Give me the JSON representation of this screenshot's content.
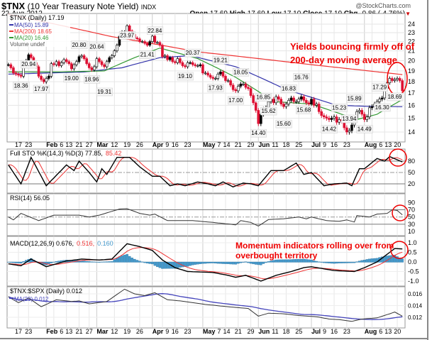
{
  "header": {
    "symbol": "$TNX",
    "name": "(10 Year Treasury Note Yield)",
    "exchange": "INDX",
    "date": "22-Aug-2012",
    "source": "@StockCharts.com",
    "ohlc": {
      "open_label": "Open",
      "open": "17.69",
      "high_label": "High",
      "high": "17.69",
      "low_label": "Low",
      "low": "17.10",
      "close_label": "Close",
      "close": "17.19",
      "chg_label": "Chg",
      "chg": "-0.86 (-4.76%)"
    }
  },
  "colors": {
    "up": "#000000",
    "down": "#dd1133",
    "ma50": "#3333aa",
    "ma200": "#ee3333",
    "ma20": "#339933",
    "annotation": "#ee0000",
    "hist": "#4499cc"
  },
  "legend": {
    "price": "$TNX (Daily) 17.19",
    "ma50": "MA(50) 15.89",
    "ma200": "MA(200) 18.65",
    "ma20": "MA(20) 16.46",
    "volume": "Volume undef",
    "sto": "Full STO %K(14,3) %D(3) 77.85,",
    "sto_d": "85.42",
    "rsi": "RSI(14) 56.05",
    "macd": "MACD(12,26,9) 0.676,",
    "macd_sig": "0.516,",
    "macd_hist": "0.160",
    "ratio": "$TNX:$SPX (Daily) 0.012",
    "ratio_ma": "MA(20) 0.012"
  },
  "annotations": {
    "yields": [
      "Yields bouncing firmly off of",
      "200-day moving average"
    ],
    "momentum": [
      "Momentum indicators rolling over from",
      "overbought territory"
    ]
  },
  "chart_data": {
    "type": "candlestick",
    "x_unit": "trading day index (0 = 10-Jan-2012, 156 = 22-Aug-2012)",
    "date_ticks": [
      {
        "l": "17",
        "i": 4
      },
      {
        "l": "23",
        "i": 8
      },
      {
        "l": "Feb",
        "i": 15,
        "b": 1
      },
      {
        "l": "6",
        "i": 18
      },
      {
        "l": "13",
        "i": 23
      },
      {
        "l": "21",
        "i": 28
      },
      {
        "l": "27",
        "i": 32
      },
      {
        "l": "Mar",
        "i": 35,
        "b": 1
      },
      {
        "l": "12",
        "i": 42
      },
      {
        "l": "19",
        "i": 47
      },
      {
        "l": "26",
        "i": 52
      },
      {
        "l": "Apr",
        "i": 57,
        "b": 1
      },
      {
        "l": "9",
        "i": 61
      },
      {
        "l": "16",
        "i": 66
      },
      {
        "l": "23",
        "i": 71
      },
      {
        "l": "May",
        "i": 77,
        "b": 1
      },
      {
        "l": "7",
        "i": 81
      },
      {
        "l": "14",
        "i": 86
      },
      {
        "l": "21",
        "i": 91
      },
      {
        "l": "29",
        "i": 96
      },
      {
        "l": "Jun",
        "i": 99,
        "b": 1
      },
      {
        "l": "11",
        "i": 105
      },
      {
        "l": "18",
        "i": 110
      },
      {
        "l": "25",
        "i": 115
      },
      {
        "l": "Jul",
        "i": 120,
        "b": 1
      },
      {
        "l": "9",
        "i": 124
      },
      {
        "l": "16",
        "i": 129
      },
      {
        "l": "23",
        "i": 134
      },
      {
        "l": "Aug",
        "i": 141,
        "b": 1
      },
      {
        "l": "6",
        "i": 144
      },
      {
        "l": "13",
        "i": 149
      },
      {
        "l": "20",
        "i": 154
      }
    ],
    "price_axis": [
      "24",
      "23",
      "22",
      "21",
      "20",
      "19",
      "18",
      "17",
      "16",
      "15",
      "14"
    ],
    "closes": [
      19.6,
      19.3,
      18.8,
      18.7,
      18.6,
      18.5,
      19.6,
      20.0,
      20.6,
      20.3,
      19.8,
      19.4,
      18.5,
      18.2,
      18.0,
      18.3,
      18.5,
      19.7,
      19.6,
      19.9,
      19.5,
      19.8,
      20.1,
      19.9,
      19.7,
      19.2,
      19.6,
      19.9,
      20.4,
      20.5,
      20.2,
      19.7,
      19.3,
      19.1,
      19.4,
      20.2,
      19.9,
      19.6,
      19.4,
      19.9,
      20.3,
      20.5,
      21.0,
      21.6,
      22.6,
      23.1,
      23.1,
      23.8,
      23.2,
      22.8,
      22.4,
      22.3,
      22.0,
      22.0,
      21.8,
      21.6,
      22.0,
      22.6,
      21.9,
      21.9,
      21.6,
      20.4,
      20.5,
      20.1,
      20.3,
      19.9,
      19.8,
      20.2,
      19.8,
      19.5,
      19.4,
      19.8,
      19.8,
      19.6,
      19.5,
      19.5,
      19.6,
      18.8,
      18.8,
      18.6,
      18.4,
      18.3,
      18.3,
      18.7,
      18.9,
      18.5,
      18.1,
      18.1,
      17.7,
      17.3,
      17.2,
      17.6,
      17.8,
      17.8,
      17.5,
      17.4,
      16.8,
      16.2,
      15.6,
      14.6,
      15.3,
      15.7,
      15.8,
      16.3,
      16.5,
      16.2,
      16.7,
      16.5,
      16.1,
      15.9,
      16.1,
      16.4,
      16.6,
      16.3,
      16.3,
      16.5,
      16.7,
      16.4,
      16.2,
      16.1,
      16.5,
      16.0,
      16.1,
      15.5,
      15.2,
      15.1,
      15.0,
      14.9,
      15.0,
      15.1,
      14.7,
      14.9,
      14.8,
      14.3,
      14.0,
      14.1,
      14.5,
      15.0,
      15.5,
      15.6,
      15.3,
      14.9,
      15.1,
      15.8,
      15.9,
      16.1,
      16.3,
      16.5,
      16.6,
      17.4,
      17.9,
      18.3,
      18.1,
      18.2,
      18.3,
      18.1,
      17.2
    ],
    "price_labels": [
      {
        "v": "18.36",
        "i": 5,
        "d": "below"
      },
      {
        "v": "20.94",
        "i": 8,
        "d": "above"
      },
      {
        "v": "17.97",
        "i": 13,
        "d": "below"
      },
      {
        "v": "19.00",
        "i": 25,
        "d": "below"
      },
      {
        "v": "20.80",
        "i": 28,
        "d": "above"
      },
      {
        "v": "18.96",
        "i": 33,
        "d": "below"
      },
      {
        "v": "20.64",
        "i": 35,
        "d": "above"
      },
      {
        "v": "19.31",
        "i": 38,
        "d": "below"
      },
      {
        "v": "23.97",
        "i": 47,
        "d": "above"
      },
      {
        "v": "21.41",
        "i": 55,
        "d": "below"
      },
      {
        "v": "22.84",
        "i": 58,
        "d": "above"
      },
      {
        "v": "19.10",
        "i": 70,
        "d": "below"
      },
      {
        "v": "20.37",
        "i": 73,
        "d": "above"
      },
      {
        "v": "17.93",
        "i": 82,
        "d": "below"
      },
      {
        "v": "19.21",
        "i": 84,
        "d": "above"
      },
      {
        "v": "17.00",
        "i": 90,
        "d": "below"
      },
      {
        "v": "18.05",
        "i": 92,
        "d": "above"
      },
      {
        "v": "14.40",
        "i": 99,
        "d": "below"
      },
      {
        "v": "16.85",
        "i": 101,
        "d": "above"
      },
      {
        "v": "15.62",
        "i": 103,
        "d": "below"
      },
      {
        "v": "15.60",
        "i": 109,
        "d": "below"
      },
      {
        "v": "16.83",
        "i": 111,
        "d": "above"
      },
      {
        "v": "16.76",
        "i": 116,
        "d": "above"
      },
      {
        "v": "15.68",
        "i": 117,
        "d": "below"
      },
      {
        "v": "14.42",
        "i": 127,
        "d": "below"
      },
      {
        "v": "15.23",
        "i": 131,
        "d": "above"
      },
      {
        "v": "13.94",
        "i": 135,
        "d": "below"
      },
      {
        "v": "15.89",
        "i": 137,
        "d": "above"
      },
      {
        "v": "14.49",
        "i": 141,
        "d": "below"
      },
      {
        "v": "17.29",
        "i": 147,
        "d": "above"
      },
      {
        "v": "16.30",
        "i": 148,
        "d": "below"
      },
      {
        "v": "18.69",
        "i": 153,
        "d": "above"
      }
    ],
    "ma200": [
      [
        0,
        25.2
      ],
      [
        40,
        22.6
      ],
      [
        75,
        20.9
      ],
      [
        120,
        19.6
      ],
      [
        156,
        18.65
      ]
    ],
    "ma50": [
      [
        0,
        18.7
      ],
      [
        30,
        18.9
      ],
      [
        45,
        19.3
      ],
      [
        60,
        20.3
      ],
      [
        72,
        20.5
      ],
      [
        90,
        19.4
      ],
      [
        110,
        17.3
      ],
      [
        130,
        16.0
      ],
      [
        145,
        15.9
      ],
      [
        156,
        15.89
      ]
    ],
    "ma20": [
      [
        0,
        18.9
      ],
      [
        20,
        18.9
      ],
      [
        38,
        19.0
      ],
      [
        50,
        20.3
      ],
      [
        60,
        21.3
      ],
      [
        75,
        20.2
      ],
      [
        90,
        18.4
      ],
      [
        105,
        16.3
      ],
      [
        120,
        16.1
      ],
      [
        138,
        14.9
      ],
      [
        146,
        15.3
      ],
      [
        156,
        16.46
      ]
    ],
    "sto_axis": [
      "80",
      "50",
      "20"
    ],
    "sto_k": [
      [
        0,
        70
      ],
      [
        5,
        20
      ],
      [
        9,
        90
      ],
      [
        15,
        15
      ],
      [
        23,
        70
      ],
      [
        26,
        55
      ],
      [
        28,
        80
      ],
      [
        32,
        50
      ],
      [
        35,
        25
      ],
      [
        37,
        60
      ],
      [
        39,
        45
      ],
      [
        43,
        90
      ],
      [
        48,
        90
      ],
      [
        52,
        65
      ],
      [
        57,
        40
      ],
      [
        60,
        40
      ],
      [
        64,
        15
      ],
      [
        67,
        20
      ],
      [
        70,
        15
      ],
      [
        75,
        25
      ],
      [
        79,
        20
      ],
      [
        82,
        15
      ],
      [
        85,
        25
      ],
      [
        89,
        12
      ],
      [
        93,
        22
      ],
      [
        96,
        20
      ],
      [
        99,
        15
      ],
      [
        104,
        55
      ],
      [
        109,
        55
      ],
      [
        114,
        75
      ],
      [
        117,
        45
      ],
      [
        120,
        50
      ],
      [
        125,
        15
      ],
      [
        129,
        20
      ],
      [
        134,
        22
      ],
      [
        136,
        15
      ],
      [
        139,
        60
      ],
      [
        141,
        60
      ],
      [
        146,
        87
      ],
      [
        149,
        80
      ],
      [
        151,
        92
      ],
      [
        156,
        78
      ]
    ],
    "rsi_axis": [
      "90",
      "70",
      "50",
      "30",
      "10"
    ],
    "rsi": [
      [
        0,
        50
      ],
      [
        2,
        42
      ],
      [
        5,
        60
      ],
      [
        12,
        40
      ],
      [
        18,
        55
      ],
      [
        28,
        55
      ],
      [
        32,
        50
      ],
      [
        36,
        55
      ],
      [
        44,
        72
      ],
      [
        47,
        73
      ],
      [
        52,
        60
      ],
      [
        56,
        55
      ],
      [
        58,
        58
      ],
      [
        63,
        40
      ],
      [
        73,
        40
      ],
      [
        81,
        35
      ],
      [
        88,
        30
      ],
      [
        90,
        28
      ],
      [
        92,
        40
      ],
      [
        96,
        35
      ],
      [
        99,
        25
      ],
      [
        103,
        43
      ],
      [
        109,
        45
      ],
      [
        115,
        50
      ],
      [
        118,
        45
      ],
      [
        120,
        50
      ],
      [
        126,
        40
      ],
      [
        131,
        38
      ],
      [
        134,
        42
      ],
      [
        137,
        36
      ],
      [
        138,
        54
      ],
      [
        143,
        50
      ],
      [
        146,
        58
      ],
      [
        150,
        60
      ],
      [
        152,
        70
      ],
      [
        154,
        68
      ],
      [
        156,
        56
      ]
    ],
    "macd_axis": [
      "1.0",
      "0.5",
      "0.0",
      "-0.5",
      "-1.0"
    ],
    "macd": [
      [
        0,
        -0.1
      ],
      [
        5,
        -0.2
      ],
      [
        9,
        0.15
      ],
      [
        15,
        -0.25
      ],
      [
        23,
        0.05
      ],
      [
        29,
        0.15
      ],
      [
        36,
        0.1
      ],
      [
        41,
        0.15
      ],
      [
        47,
        0.95
      ],
      [
        52,
        0.8
      ],
      [
        57,
        0.6
      ],
      [
        61,
        0.1
      ],
      [
        66,
        -0.3
      ],
      [
        71,
        -0.5
      ],
      [
        81,
        -0.55
      ],
      [
        87,
        -0.7
      ],
      [
        90,
        -0.8
      ],
      [
        94,
        -0.7
      ],
      [
        100,
        -1.0
      ],
      [
        106,
        -0.7
      ],
      [
        112,
        -0.5
      ],
      [
        117,
        -0.3
      ],
      [
        120,
        -0.25
      ],
      [
        129,
        -0.45
      ],
      [
        137,
        -0.5
      ],
      [
        141,
        -0.3
      ],
      [
        146,
        0.0
      ],
      [
        150,
        0.4
      ],
      [
        153,
        0.7
      ],
      [
        156,
        0.676
      ]
    ],
    "ratio_axis": [
      "0.016",
      "0.014",
      "0.012"
    ],
    "ratio": [
      [
        0,
        0.0155
      ],
      [
        4,
        0.0145
      ],
      [
        8,
        0.0153
      ],
      [
        13,
        0.0138
      ],
      [
        19,
        0.015
      ],
      [
        25,
        0.0147
      ],
      [
        28,
        0.0148
      ],
      [
        32,
        0.0143
      ],
      [
        39,
        0.0147
      ],
      [
        46,
        0.0168
      ],
      [
        50,
        0.016
      ],
      [
        54,
        0.0157
      ],
      [
        58,
        0.0162
      ],
      [
        63,
        0.015
      ],
      [
        68,
        0.0148
      ],
      [
        78,
        0.0142
      ],
      [
        87,
        0.0138
      ],
      [
        95,
        0.0135
      ],
      [
        99,
        0.0122
      ],
      [
        103,
        0.0127
      ],
      [
        109,
        0.0126
      ],
      [
        115,
        0.0123
      ],
      [
        122,
        0.0121
      ],
      [
        127,
        0.0117
      ],
      [
        131,
        0.0116
      ],
      [
        136,
        0.0113
      ],
      [
        140,
        0.0117
      ],
      [
        146,
        0.0119
      ],
      [
        151,
        0.0126
      ],
      [
        153,
        0.0129
      ],
      [
        156,
        0.0122
      ]
    ]
  }
}
